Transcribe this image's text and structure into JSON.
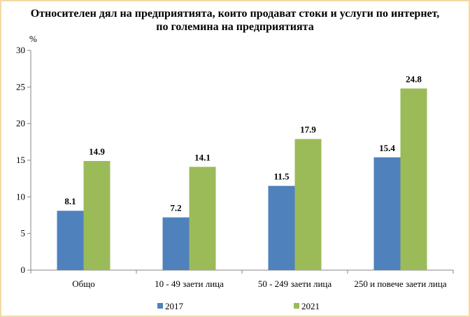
{
  "title_line1": "Относителен дял на предприятията, които продават стоки и услуги по интернет,",
  "title_line2": "по големина на предприятията",
  "chart_data": {
    "type": "bar",
    "ylabel": "%",
    "ylim": [
      0,
      30
    ],
    "yticks": [
      0,
      5,
      10,
      15,
      20,
      25,
      30
    ],
    "grid": false,
    "legend_position": "bottom",
    "categories": [
      "Общо",
      "10 - 49 заети лица",
      "50 - 249 заети лица",
      "250 и повече заети лица"
    ],
    "series": [
      {
        "name": "2017",
        "values": [
          8.1,
          7.2,
          11.5,
          15.4
        ],
        "color": "#4f81bd"
      },
      {
        "name": "2021",
        "values": [
          14.9,
          14.1,
          17.9,
          24.8
        ],
        "color": "#9bbb59"
      }
    ]
  }
}
